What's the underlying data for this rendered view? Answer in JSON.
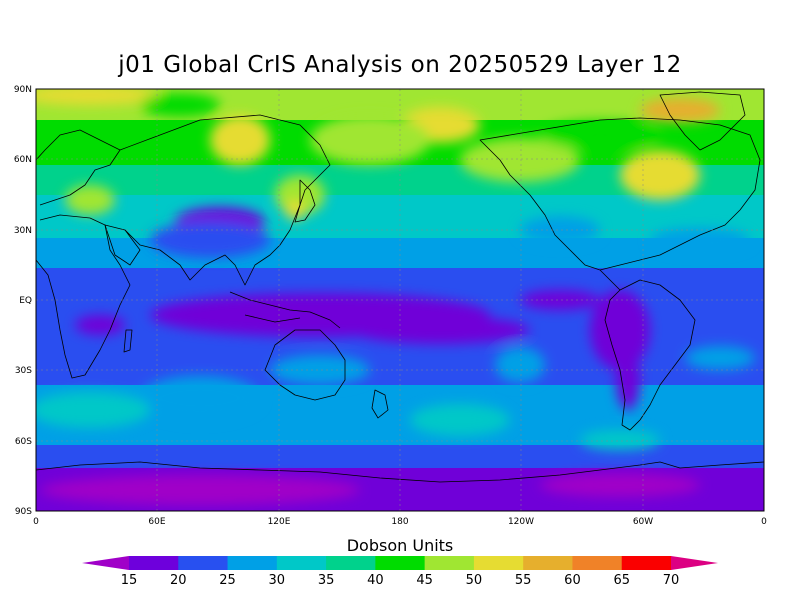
{
  "title": "j01 Global CrIS Analysis on 20250529 Layer 12",
  "map": {
    "lat_ticks": [
      "90N",
      "60N",
      "30N",
      "EQ",
      "30S",
      "60S",
      "90S"
    ],
    "lon_ticks": [
      "0",
      "60E",
      "120E",
      "180",
      "120W",
      "60W",
      "0"
    ]
  },
  "colorbar": {
    "title": "Dobson Units",
    "levels": [
      "15",
      "20",
      "25",
      "30",
      "35",
      "40",
      "45",
      "50",
      "55",
      "60",
      "65",
      "70"
    ],
    "colors": [
      "#a000c8",
      "#6e00dc",
      "#2850f0",
      "#00a0e6",
      "#00c8c8",
      "#00d28c",
      "#00dc00",
      "#a0e632",
      "#e6dc32",
      "#e6af2d",
      "#f08228",
      "#fa0000",
      "#dc0082"
    ]
  },
  "field_palette": {
    "purple_15": "#7000d8",
    "blue_20": "#2a4ef0",
    "lightblue_25": "#00a0e6",
    "cyan_30": "#00c8c8",
    "teal_35": "#00d28c",
    "green_40": "#00dc00",
    "lime_45": "#a0e632",
    "yellow_50": "#e6dc32",
    "orange_55": "#e6af2d",
    "darkpurple_lt15": "#a000c8"
  }
}
